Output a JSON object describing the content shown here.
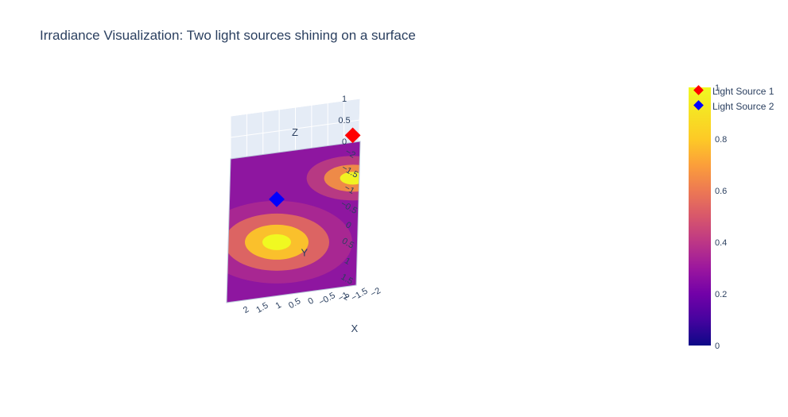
{
  "chart_data": {
    "type": "surface",
    "title": "Irradiance Visualization: Two light sources shining on a surface",
    "x_axis": {
      "label": "X",
      "range": [
        -2,
        2
      ],
      "ticks": [
        "−2",
        "−1.5",
        "−1",
        "−0.5",
        "0",
        "0.5",
        "1",
        "1.5",
        "2"
      ]
    },
    "y_axis": {
      "label": "Y",
      "range": [
        -2,
        2
      ],
      "ticks": [
        "−2",
        "−1.5",
        "−1",
        "−0.5",
        "0",
        "0.5",
        "1",
        "1.5",
        "2"
      ]
    },
    "z_axis": {
      "label": "Z",
      "range": [
        0,
        1
      ],
      "ticks": [
        "0",
        "0.5",
        "1"
      ]
    },
    "surface": {
      "z": 0,
      "color_by": "irradiance",
      "peaks": [
        {
          "x": -1.8,
          "y": -1,
          "irradiance": 1
        },
        {
          "x": 0.5,
          "y": 0.5,
          "irradiance": 1
        }
      ]
    },
    "light_sources": [
      {
        "name": "Light Source 1",
        "x": -1.8,
        "y": -1,
        "z": 1,
        "color": "#ff0000",
        "marker": "diamond"
      },
      {
        "name": "Light Source 2",
        "x": 0.5,
        "y": 0.5,
        "z": 1,
        "color": "#0000ff",
        "marker": "diamond"
      }
    ],
    "legend": {
      "placement": "top-right",
      "entries": [
        "Light Source 1",
        "Light Source 2"
      ]
    },
    "colorbar": {
      "colorscale": "plasma",
      "range": [
        0,
        1
      ],
      "ticks": [
        "0",
        "0.2",
        "0.4",
        "0.6",
        "0.8",
        "1"
      ]
    },
    "grid": true
  }
}
